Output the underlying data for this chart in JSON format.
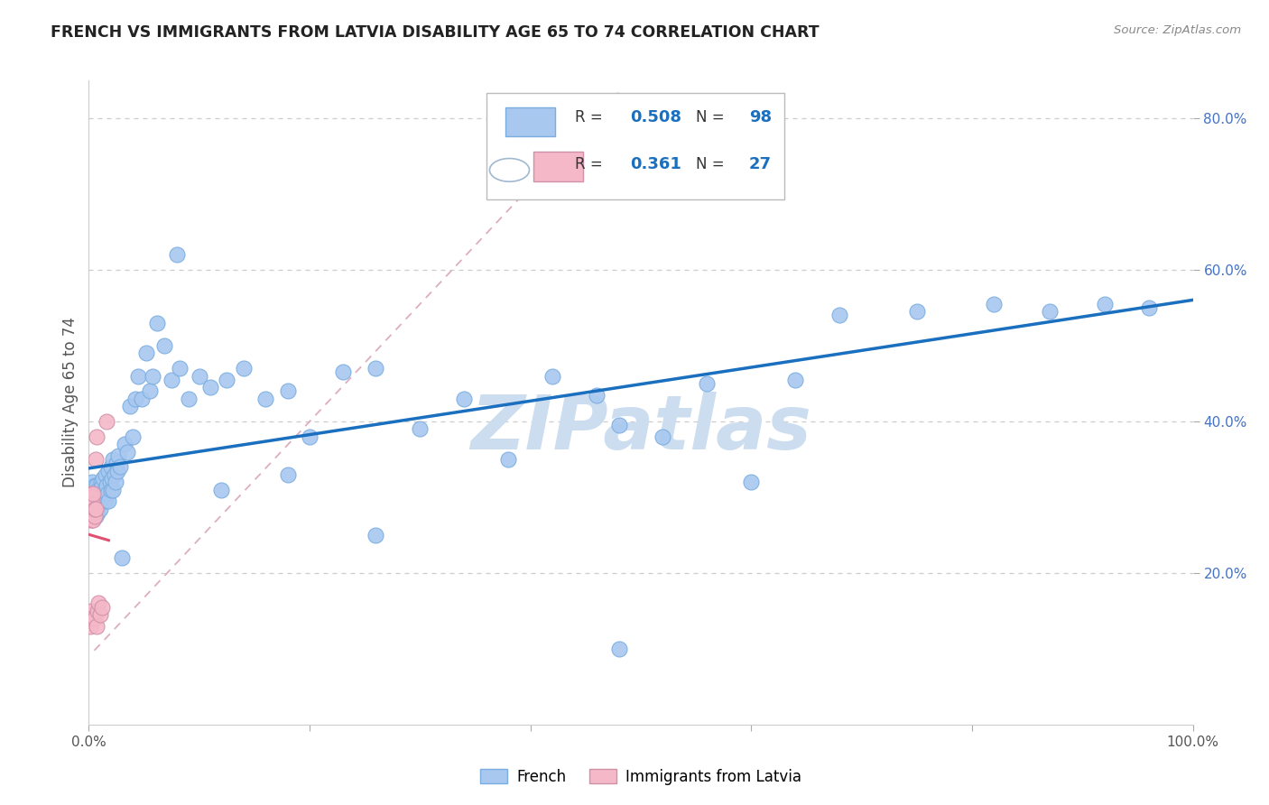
{
  "title": "FRENCH VS IMMIGRANTS FROM LATVIA DISABILITY AGE 65 TO 74 CORRELATION CHART",
  "source": "Source: ZipAtlas.com",
  "ylabel": "Disability Age 65 to 74",
  "french_R": "0.508",
  "french_N": "98",
  "latvia_R": "0.361",
  "latvia_N": "27",
  "french_color": "#a8c8f0",
  "french_edge_color": "#7aade0",
  "french_line_color": "#1a6fbe",
  "latvia_color": "#f4b8c8",
  "latvia_edge_color": "#d090a8",
  "latvia_line_color": "#e05070",
  "diag_color": "#d8a0b0",
  "grid_color": "#cccccc",
  "r_label_color": "#1a6fbe",
  "n_label_color": "#1a6fbe",
  "watermark": "ZIPatlas",
  "watermark_color": "#ccddf0",
  "title_color": "#222222",
  "axis_label_color": "#555555",
  "right_tick_color": "#4472c4",
  "source_color": "#888888",
  "xlim": [
    0.0,
    1.0
  ],
  "ylim": [
    0.0,
    0.85
  ],
  "x_ticks": [
    0.0,
    0.2,
    0.4,
    0.6,
    0.8,
    1.0
  ],
  "x_tick_labels": [
    "0.0%",
    "",
    "",
    "",
    "",
    "100.0%"
  ],
  "y_ticks_right": [
    0.2,
    0.4,
    0.6,
    0.8
  ],
  "y_tick_labels_right": [
    "20.0%",
    "40.0%",
    "60.0%",
    "80.0%"
  ],
  "bottom_legend": [
    "French",
    "Immigrants from Latvia"
  ],
  "french_x": [
    0.001,
    0.001,
    0.002,
    0.002,
    0.003,
    0.003,
    0.003,
    0.004,
    0.004,
    0.004,
    0.005,
    0.005,
    0.005,
    0.006,
    0.006,
    0.006,
    0.007,
    0.007,
    0.007,
    0.008,
    0.008,
    0.008,
    0.009,
    0.009,
    0.01,
    0.01,
    0.011,
    0.011,
    0.012,
    0.012,
    0.013,
    0.013,
    0.014,
    0.015,
    0.015,
    0.016,
    0.017,
    0.018,
    0.018,
    0.019,
    0.02,
    0.02,
    0.021,
    0.022,
    0.022,
    0.023,
    0.024,
    0.025,
    0.026,
    0.027,
    0.028,
    0.03,
    0.032,
    0.035,
    0.037,
    0.04,
    0.042,
    0.045,
    0.048,
    0.052,
    0.055,
    0.058,
    0.062,
    0.068,
    0.075,
    0.082,
    0.09,
    0.1,
    0.11,
    0.125,
    0.14,
    0.16,
    0.18,
    0.2,
    0.23,
    0.26,
    0.3,
    0.34,
    0.38,
    0.42,
    0.46,
    0.48,
    0.52,
    0.56,
    0.6,
    0.64,
    0.68,
    0.75,
    0.82,
    0.87,
    0.92,
    0.96,
    0.48,
    0.38,
    0.26,
    0.18,
    0.12,
    0.08
  ],
  "french_y": [
    0.29,
    0.31,
    0.285,
    0.305,
    0.275,
    0.3,
    0.32,
    0.28,
    0.295,
    0.31,
    0.285,
    0.3,
    0.315,
    0.275,
    0.29,
    0.305,
    0.285,
    0.3,
    0.315,
    0.28,
    0.295,
    0.31,
    0.29,
    0.305,
    0.285,
    0.31,
    0.295,
    0.32,
    0.3,
    0.315,
    0.305,
    0.325,
    0.31,
    0.295,
    0.33,
    0.315,
    0.305,
    0.295,
    0.335,
    0.32,
    0.31,
    0.34,
    0.325,
    0.31,
    0.35,
    0.33,
    0.32,
    0.345,
    0.335,
    0.355,
    0.34,
    0.22,
    0.37,
    0.36,
    0.42,
    0.38,
    0.43,
    0.46,
    0.43,
    0.49,
    0.44,
    0.46,
    0.53,
    0.5,
    0.455,
    0.47,
    0.43,
    0.46,
    0.445,
    0.455,
    0.47,
    0.43,
    0.44,
    0.38,
    0.465,
    0.47,
    0.39,
    0.43,
    0.35,
    0.46,
    0.435,
    0.1,
    0.38,
    0.45,
    0.32,
    0.455,
    0.54,
    0.545,
    0.555,
    0.545,
    0.555,
    0.55,
    0.395,
    0.72,
    0.25,
    0.33,
    0.31,
    0.62
  ],
  "latvia_x": [
    0.001,
    0.001,
    0.001,
    0.001,
    0.002,
    0.002,
    0.002,
    0.002,
    0.003,
    0.003,
    0.003,
    0.003,
    0.004,
    0.004,
    0.004,
    0.005,
    0.005,
    0.005,
    0.006,
    0.006,
    0.007,
    0.007,
    0.008,
    0.009,
    0.01,
    0.012,
    0.016
  ],
  "latvia_y": [
    0.27,
    0.29,
    0.305,
    0.13,
    0.285,
    0.15,
    0.295,
    0.275,
    0.27,
    0.285,
    0.3,
    0.14,
    0.27,
    0.29,
    0.305,
    0.275,
    0.14,
    0.285,
    0.285,
    0.35,
    0.13,
    0.38,
    0.15,
    0.16,
    0.145,
    0.155,
    0.4
  ]
}
